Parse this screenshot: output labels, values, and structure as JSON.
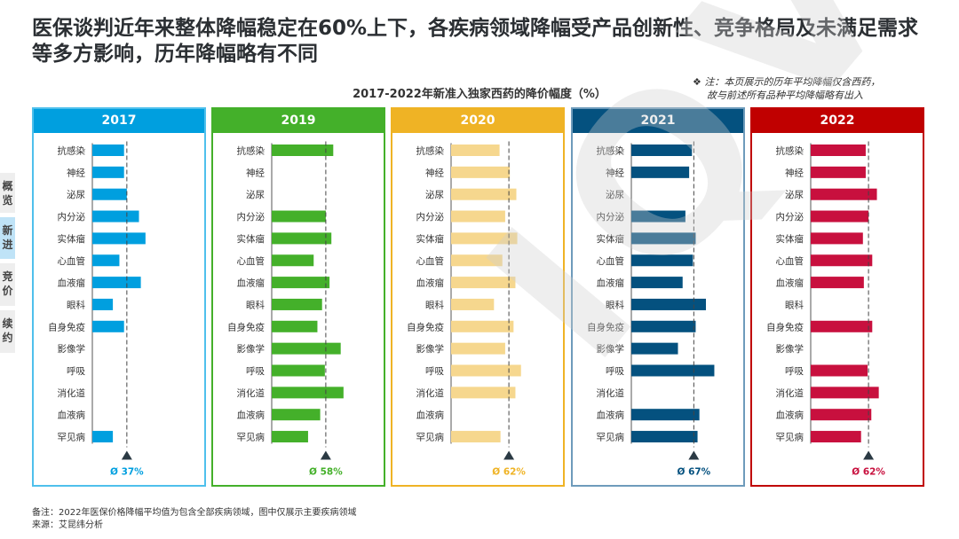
{
  "title": "医保谈判近年来整体降幅稳定在60%上下，各疾病领域降幅受产品创新性、竞争格局及未满足需求等多方影响，历年降幅略有不同",
  "note": {
    "line1": "❖ 注：本页展示的历年平均降幅仅含西药，",
    "line2": "故与前述所有品种平均降幅略有出入"
  },
  "sidebar": [
    "概览",
    "新进",
    "竞价",
    "续约"
  ],
  "footer": {
    "line1": "备注：2022年医保价格降幅平均值为包含全部疾病领域，图中仅展示主要疾病领域",
    "line2": "来源：艾昆纬分析"
  },
  "watermark": "IQVIA",
  "chart_data": {
    "type": "bar",
    "orientation": "horizontal",
    "title": "2017-2022年新准入独家西药的降价幅度（%）",
    "categories": [
      "抗感染",
      "神经",
      "泌尿",
      "内分泌",
      "实体瘤",
      "心血管",
      "血液瘤",
      "眼科",
      "自身免疫",
      "影像学",
      "呼吸",
      "消化道",
      "血液病",
      "罕见病"
    ],
    "series": [
      {
        "name": "2017",
        "color": "#009fdf",
        "border": "#4fc0ec",
        "avg": 37,
        "avg_label": "Ø 37%",
        "values": [
          34,
          34,
          37,
          50,
          57,
          29,
          52,
          22,
          34,
          null,
          null,
          null,
          null,
          22
        ]
      },
      {
        "name": "2019",
        "color": "#44b02a",
        "border": "#44b02a",
        "avg": 58,
        "avg_label": "Ø 58%",
        "values": [
          66,
          null,
          null,
          58,
          64,
          45,
          62,
          54,
          49,
          74,
          57,
          77,
          52,
          39
        ]
      },
      {
        "name": "2020",
        "color": "#f6d78e",
        "header": "#efb325",
        "border": "#efb325",
        "avg": 62,
        "avg_label": "Ø 62%",
        "label_color": "#efb325",
        "values": [
          52,
          63,
          70,
          58,
          71,
          55,
          69,
          46,
          67,
          58,
          75,
          69,
          null,
          53
        ]
      },
      {
        "name": "2021",
        "color": "#04517f",
        "border": "#6e9bbb",
        "header": "#04517f",
        "avg": 67,
        "avg_label": "Ø 67%",
        "values": [
          65,
          62,
          null,
          58,
          69,
          66,
          55,
          80,
          69,
          50,
          89,
          null,
          73,
          71
        ]
      },
      {
        "name": "2022",
        "color": "#c8103e",
        "border": "#c00000",
        "header": "#c00000",
        "avg": 62,
        "avg_label": "Ø 62%",
        "values": [
          59,
          59,
          71,
          62,
          56,
          66,
          57,
          null,
          66,
          null,
          61,
          73,
          65,
          54
        ]
      }
    ]
  }
}
